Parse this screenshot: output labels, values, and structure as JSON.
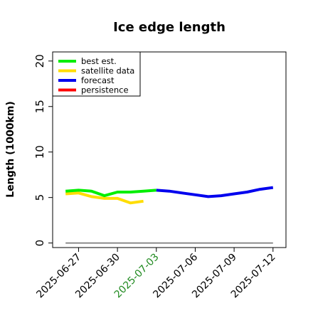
{
  "chart_data": {
    "type": "line",
    "title": "Ice edge length",
    "xlabel": "",
    "ylabel": "Length (1000km)",
    "ylim": [
      -0.5,
      21
    ],
    "xlim": [
      "2025-06-25",
      "2025-07-13"
    ],
    "y_ticks": [
      0,
      5,
      10,
      15,
      20
    ],
    "x_tick_labels": [
      {
        "date": "2025-06-27",
        "label": "2025-06-27",
        "color": "#000000"
      },
      {
        "date": "2025-06-30",
        "label": "2025-06-30",
        "color": "#000000"
      },
      {
        "date": "2025-07-03",
        "label": "2025-07-03",
        "color": "#228b22"
      },
      {
        "date": "2025-07-06",
        "label": "2025-07-06",
        "color": "#000000"
      },
      {
        "date": "2025-07-09",
        "label": "2025-07-09",
        "color": "#000000"
      },
      {
        "date": "2025-07-12",
        "label": "2025-07-12",
        "color": "#000000"
      }
    ],
    "grid": false,
    "legend_position": "top-left",
    "series": [
      {
        "name": "best est.",
        "color": "#00ee00",
        "points": [
          {
            "x": "2025-06-26",
            "y": 5.7
          },
          {
            "x": "2025-06-27",
            "y": 5.8
          },
          {
            "x": "2025-06-28",
            "y": 5.7
          },
          {
            "x": "2025-06-29",
            "y": 5.2
          },
          {
            "x": "2025-06-30",
            "y": 5.6
          },
          {
            "x": "2025-07-01",
            "y": 5.6
          },
          {
            "x": "2025-07-02",
            "y": 5.7
          },
          {
            "x": "2025-07-03",
            "y": 5.8
          }
        ]
      },
      {
        "name": "satellite data",
        "color": "#ffdd00",
        "points": [
          {
            "x": "2025-06-26",
            "y": 5.4
          },
          {
            "x": "2025-06-27",
            "y": 5.5
          },
          {
            "x": "2025-06-28",
            "y": 5.1
          },
          {
            "x": "2025-06-29",
            "y": 4.9
          },
          {
            "x": "2025-06-30",
            "y": 4.9
          },
          {
            "x": "2025-07-01",
            "y": 4.4
          },
          {
            "x": "2025-07-02",
            "y": 4.6
          }
        ]
      },
      {
        "name": "forecast",
        "color": "#0000ee",
        "points": [
          {
            "x": "2025-07-03",
            "y": 5.8
          },
          {
            "x": "2025-07-04",
            "y": 5.7
          },
          {
            "x": "2025-07-05",
            "y": 5.5
          },
          {
            "x": "2025-07-06",
            "y": 5.3
          },
          {
            "x": "2025-07-07",
            "y": 5.1
          },
          {
            "x": "2025-07-08",
            "y": 5.2
          },
          {
            "x": "2025-07-09",
            "y": 5.4
          },
          {
            "x": "2025-07-10",
            "y": 5.6
          },
          {
            "x": "2025-07-11",
            "y": 5.9
          },
          {
            "x": "2025-07-12",
            "y": 6.1
          }
        ]
      },
      {
        "name": "persistence",
        "color": "#ff0000",
        "points": []
      }
    ],
    "baseline": {
      "color": "#555555",
      "points": [
        {
          "x": "2025-06-26",
          "y": 0
        },
        {
          "x": "2025-07-12",
          "y": 0
        }
      ]
    }
  }
}
